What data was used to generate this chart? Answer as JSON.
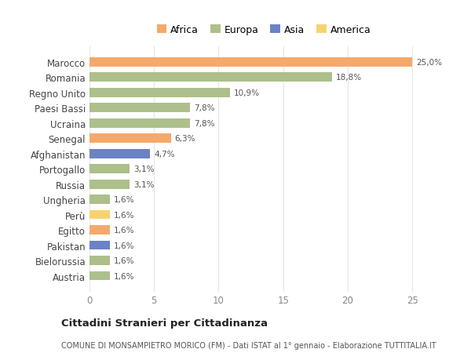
{
  "categories": [
    "Marocco",
    "Romania",
    "Regno Unito",
    "Paesi Bassi",
    "Ucraina",
    "Senegal",
    "Afghanistan",
    "Portogallo",
    "Russia",
    "Ungheria",
    "Perù",
    "Egitto",
    "Pakistan",
    "Bielorussia",
    "Austria"
  ],
  "values": [
    25.0,
    18.8,
    10.9,
    7.8,
    7.8,
    6.3,
    4.7,
    3.1,
    3.1,
    1.6,
    1.6,
    1.6,
    1.6,
    1.6,
    1.6
  ],
  "labels": [
    "25,0%",
    "18,8%",
    "10,9%",
    "7,8%",
    "7,8%",
    "6,3%",
    "4,7%",
    "3,1%",
    "3,1%",
    "1,6%",
    "1,6%",
    "1,6%",
    "1,6%",
    "1,6%",
    "1,6%"
  ],
  "continents": [
    "Africa",
    "Europa",
    "Europa",
    "Europa",
    "Europa",
    "Africa",
    "Asia",
    "Europa",
    "Europa",
    "Europa",
    "America",
    "Africa",
    "Asia",
    "Europa",
    "Europa"
  ],
  "colors": {
    "Africa": "#F4A96D",
    "Europa": "#ADBF8A",
    "Asia": "#6B83C4",
    "America": "#F5D470"
  },
  "legend_order": [
    "Africa",
    "Europa",
    "Asia",
    "America"
  ],
  "title": "Cittadini Stranieri per Cittadinanza",
  "subtitle": "COMUNE DI MONSAMPIETRO MORICO (FM) - Dati ISTAT al 1° gennaio - Elaborazione TUTTITALIA.IT",
  "xlim": [
    0,
    27
  ],
  "xticks": [
    0,
    5,
    10,
    15,
    20,
    25
  ],
  "bg_color": "#ffffff",
  "grid_color": "#e5e5e5",
  "bar_height": 0.6
}
